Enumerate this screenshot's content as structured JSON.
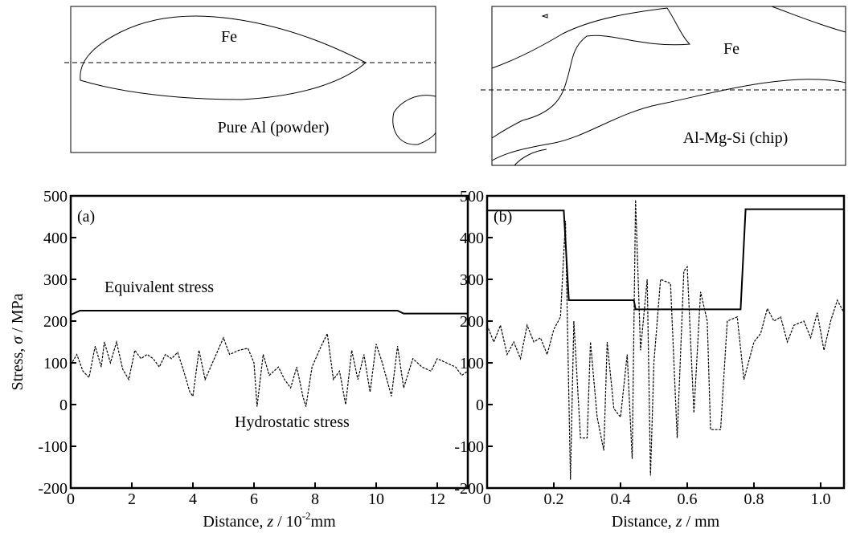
{
  "chart_data": [
    {
      "type": "line",
      "panel_label": "(a)",
      "sketch_labels": [
        "Fe",
        "Pure Al (powder)"
      ],
      "y_label_parts": [
        "Stress, ",
        "σ",
        " / MPa"
      ],
      "x_label_parts": [
        "Distance, ",
        "z",
        " / 10",
        "-2",
        "mm"
      ],
      "xlim": [
        0,
        13
      ],
      "xticks": [
        0,
        2,
        4,
        6,
        8,
        10,
        12
      ],
      "ylim": [
        -200,
        500
      ],
      "yticks": [
        -200,
        -100,
        0,
        100,
        200,
        300,
        400,
        500
      ],
      "series": [
        {
          "name": "Equivalent stress",
          "style": "solid",
          "color": "#000000",
          "x": [
            0,
            0.3,
            10.7,
            10.9,
            13
          ],
          "values": [
            215,
            225,
            225,
            218,
            218
          ]
        },
        {
          "name": "Hydrostatic stress",
          "style": "dashed",
          "color": "#000000",
          "x": [
            0,
            0.2,
            0.4,
            0.6,
            0.8,
            1.0,
            1.1,
            1.3,
            1.5,
            1.7,
            1.9,
            2.1,
            2.3,
            2.5,
            2.7,
            2.9,
            3.1,
            3.3,
            3.5,
            3.7,
            3.9,
            4.0,
            4.2,
            4.4,
            4.7,
            5.0,
            5.2,
            5.5,
            5.8,
            6.0,
            6.1,
            6.3,
            6.5,
            6.8,
            7.0,
            7.2,
            7.4,
            7.6,
            7.7,
            7.9,
            8.2,
            8.4,
            8.6,
            8.8,
            9.0,
            9.2,
            9.4,
            9.6,
            9.8,
            10.0,
            10.2,
            10.5,
            10.7,
            10.9,
            11.2,
            11.5,
            11.8,
            12.0,
            12.3,
            12.6,
            12.8,
            13.0
          ],
          "values": [
            95,
            120,
            80,
            65,
            140,
            90,
            150,
            100,
            150,
            85,
            60,
            130,
            110,
            120,
            110,
            90,
            120,
            110,
            125,
            80,
            30,
            20,
            130,
            60,
            110,
            160,
            120,
            130,
            135,
            100,
            -5,
            120,
            70,
            90,
            60,
            40,
            90,
            20,
            -5,
            90,
            140,
            170,
            60,
            80,
            0,
            130,
            60,
            120,
            30,
            145,
            100,
            20,
            140,
            40,
            110,
            90,
            80,
            110,
            100,
            90,
            70,
            80
          ]
        }
      ]
    },
    {
      "type": "line",
      "panel_label": "(b)",
      "sketch_labels": [
        "Fe",
        "Al-Mg-Si (chip)"
      ],
      "x_label_parts": [
        "Distance, ",
        "z",
        " / mm"
      ],
      "xlim": [
        0,
        1.07
      ],
      "xticks": [
        0,
        0.2,
        0.4,
        0.6,
        0.8,
        {
          "value": 1,
          "label": "1.0"
        }
      ],
      "ylim": [
        -200,
        500
      ],
      "yticks": [
        -200,
        -100,
        0,
        100,
        200,
        300,
        400,
        500
      ],
      "series": [
        {
          "style": "solid",
          "color": "#000000",
          "x": [
            0,
            0.23,
            0.245,
            0.44,
            0.445,
            0.76,
            0.775,
            1.07
          ],
          "values": [
            465,
            465,
            250,
            250,
            228,
            228,
            468,
            468
          ]
        },
        {
          "style": "dashed",
          "color": "#000000",
          "x": [
            0,
            0.02,
            0.04,
            0.06,
            0.08,
            0.1,
            0.12,
            0.14,
            0.16,
            0.18,
            0.2,
            0.22,
            0.235,
            0.25,
            0.26,
            0.28,
            0.3,
            0.31,
            0.33,
            0.35,
            0.36,
            0.38,
            0.4,
            0.42,
            0.435,
            0.445,
            0.46,
            0.48,
            0.49,
            0.5,
            0.52,
            0.55,
            0.57,
            0.59,
            0.6,
            0.62,
            0.64,
            0.66,
            0.67,
            0.7,
            0.72,
            0.75,
            0.77,
            0.8,
            0.82,
            0.84,
            0.86,
            0.88,
            0.9,
            0.92,
            0.95,
            0.97,
            0.99,
            1.01,
            1.03,
            1.05,
            1.07
          ],
          "values": [
            190,
            150,
            190,
            120,
            150,
            110,
            190,
            150,
            160,
            120,
            180,
            210,
            440,
            -180,
            200,
            -80,
            -80,
            150,
            -30,
            -110,
            150,
            -10,
            -30,
            120,
            -130,
            490,
            130,
            300,
            -170,
            100,
            300,
            290,
            -80,
            320,
            330,
            -20,
            270,
            200,
            -60,
            -60,
            200,
            210,
            60,
            150,
            170,
            230,
            200,
            210,
            150,
            190,
            200,
            160,
            220,
            130,
            200,
            250,
            220
          ]
        }
      ]
    }
  ]
}
